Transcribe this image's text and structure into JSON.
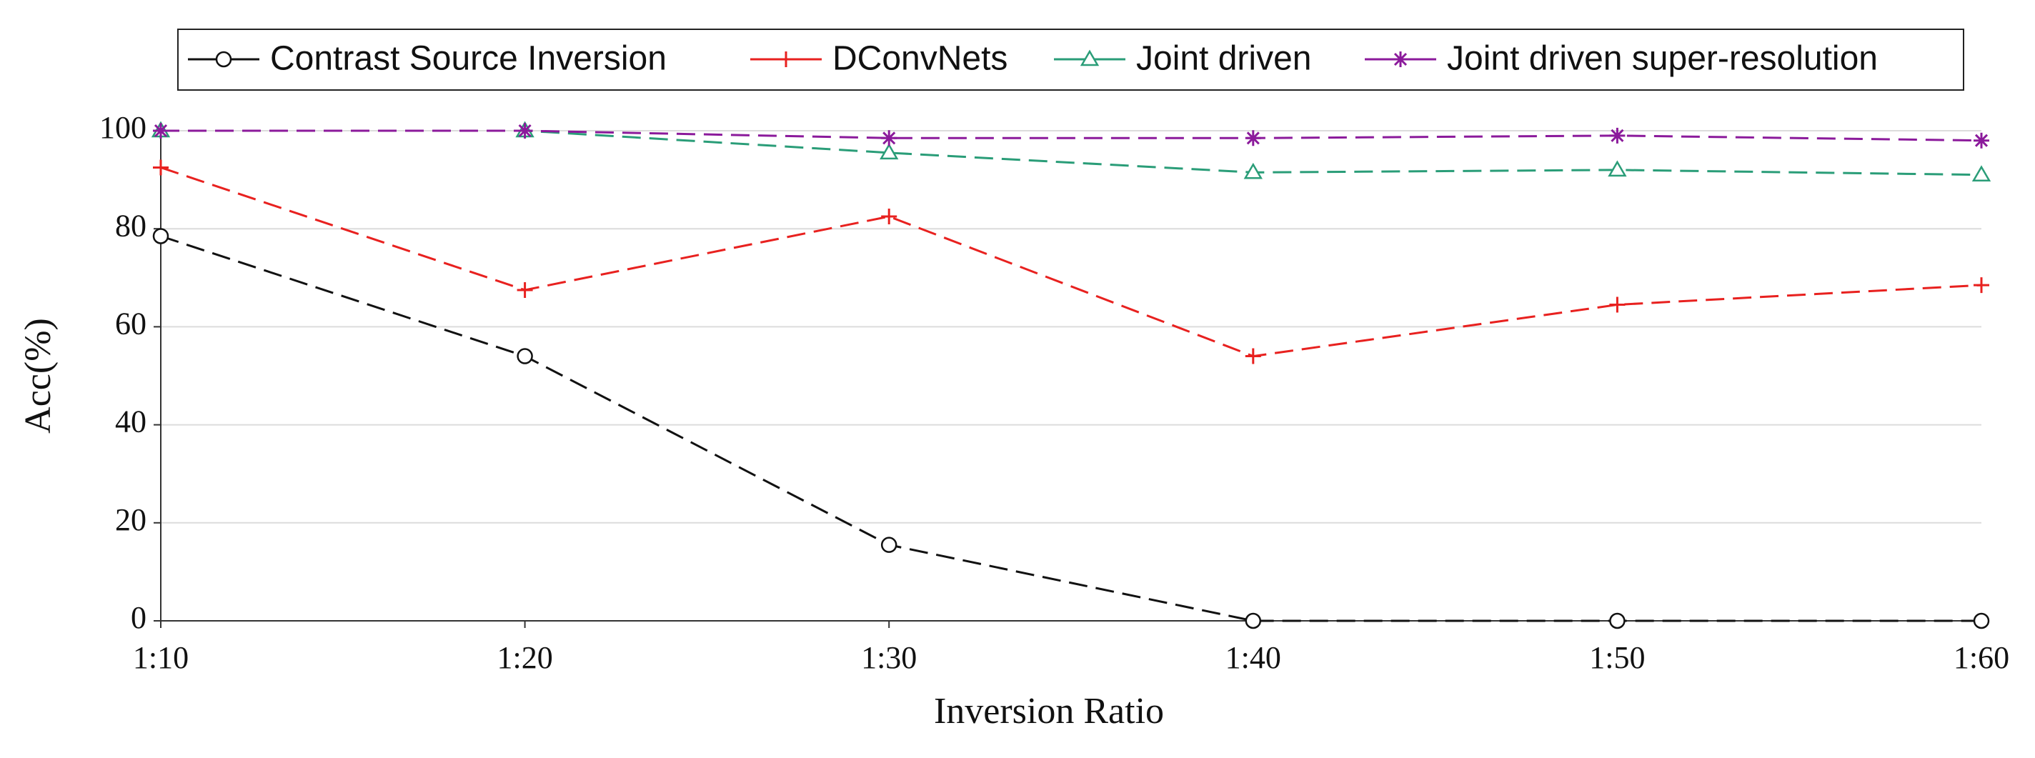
{
  "chart_data": {
    "type": "line",
    "x_label": "Inversion Ratio",
    "y_label": "Acc(%)",
    "categories": [
      "1:10",
      "1:20",
      "1:30",
      "1:40",
      "1:50",
      "1:60"
    ],
    "series": [
      {
        "name": "Contrast Source Inversion",
        "color": "#111111",
        "marker": "circle",
        "values": [
          78.5,
          54,
          15.5,
          0,
          0,
          0
        ]
      },
      {
        "name": "DConvNets",
        "color": "#e8211f",
        "marker": "plus",
        "values": [
          92.5,
          67.5,
          82.5,
          54,
          64.5,
          68.5
        ]
      },
      {
        "name": "Joint driven",
        "color": "#2a9d78",
        "marker": "triangle",
        "values": [
          100,
          100,
          95.5,
          91.5,
          92,
          91
        ]
      },
      {
        "name": "Joint driven super-resolution",
        "color": "#8b1a9b",
        "marker": "asterisk",
        "values": [
          100,
          100,
          98.5,
          98.5,
          99,
          98
        ]
      }
    ],
    "ylim": [
      0,
      100
    ],
    "yticks": [
      0,
      20,
      40,
      60,
      80,
      100
    ],
    "grid": true,
    "legend": "top"
  }
}
